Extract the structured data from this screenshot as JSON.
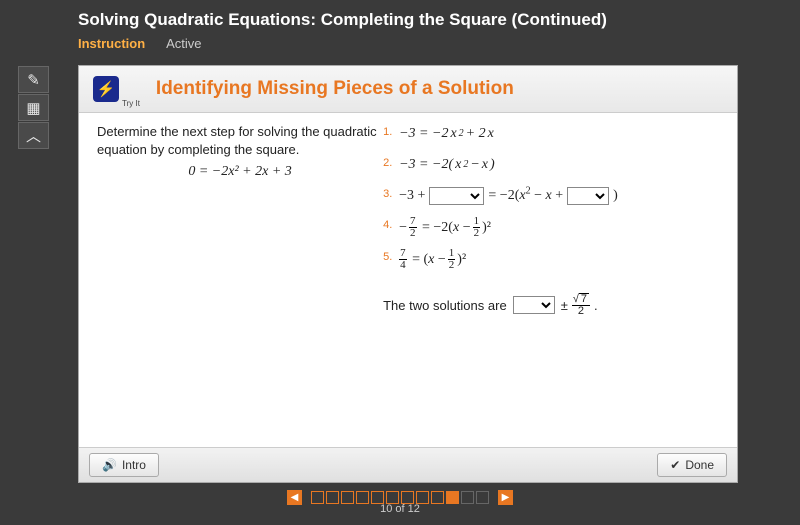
{
  "header": {
    "title": "Solving Quadratic Equations: Completing the Square (Continued)",
    "tab_instruction": "Instruction",
    "tab_active": "Active"
  },
  "sidebar": {
    "pencil_icon": "✎",
    "calc_icon": "▦",
    "up_icon": "︿"
  },
  "panel": {
    "tryit_glyph": "⚡",
    "tryit_label": "Try It",
    "title": "Identifying Missing Pieces of a Solution",
    "prompt": "Determine the next step for solving the quadratic equation by completing the square.",
    "given_eq_lhs": "0 = ",
    "given_eq_rhs": "−2x² + 2x + 3",
    "steps": [
      {
        "n": "1.",
        "expr": "−3 = −2x² + 2x"
      },
      {
        "n": "2.",
        "expr": "−3 = −2(x² − x)"
      },
      {
        "n": "3.",
        "pre": "−3 + ",
        "mid": " = −2(x² − x +",
        "post": " )"
      },
      {
        "n": "4.",
        "lhs_sign": "−",
        "lhs_top": "7",
        "lhs_bot": "2",
        "eq": " = −2(x − ",
        "r_top": "1",
        "r_bot": "2",
        "tail": ")²"
      },
      {
        "n": "5.",
        "lhs_top": "7",
        "lhs_bot": "4",
        "eq": " = (x − ",
        "r_top": "1",
        "r_bot": "2",
        "tail": ")²"
      }
    ],
    "solutions_label": "The two solutions are",
    "pm": "±",
    "sol_rad": "7",
    "sol_den": "2",
    "period": "."
  },
  "footer": {
    "intro_label": "Intro",
    "done_label": "Done",
    "speaker_icon": "🔊",
    "check_icon": "✔"
  },
  "pager": {
    "total": 12,
    "current": 10,
    "counter": "10 of 12",
    "prev": "◀",
    "next": "▶"
  }
}
